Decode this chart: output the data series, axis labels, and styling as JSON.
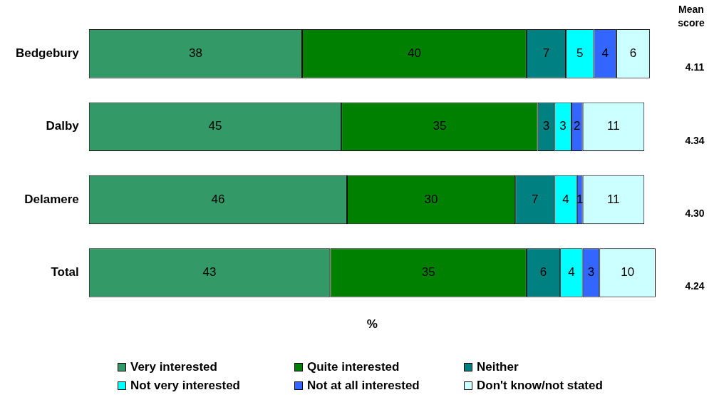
{
  "chart_data": {
    "type": "bar",
    "orientation": "horizontal",
    "stacked": true,
    "data_labels": true,
    "grid": false,
    "legend": "bottom",
    "tick_labels": "y",
    "xlabel": "%",
    "categories": [
      "Bedgebury",
      "Dalby",
      "Delamere",
      "Total"
    ],
    "xlim": [
      0,
      101
    ],
    "series": [
      {
        "name": "Very interested",
        "color": "#339966",
        "values": [
          38,
          45,
          46,
          43
        ]
      },
      {
        "name": "Quite interested",
        "color": "#008000",
        "values": [
          40,
          35,
          30,
          35
        ]
      },
      {
        "name": "Neither",
        "color": "#008080",
        "values": [
          7,
          3,
          7,
          6
        ]
      },
      {
        "name": "Not very interested",
        "color": "#00ffff",
        "values": [
          5,
          3,
          4,
          4
        ]
      },
      {
        "name": "Not at all interested",
        "color": "#3366ff",
        "values": [
          4,
          2,
          1,
          3
        ]
      },
      {
        "name": "Don't know/not stated",
        "color": "#ccffff",
        "values": [
          6,
          11,
          11,
          10
        ]
      }
    ],
    "annotations": [
      "Mean score",
      "4.11",
      "4.34",
      "4.30",
      "4.24"
    ]
  }
}
